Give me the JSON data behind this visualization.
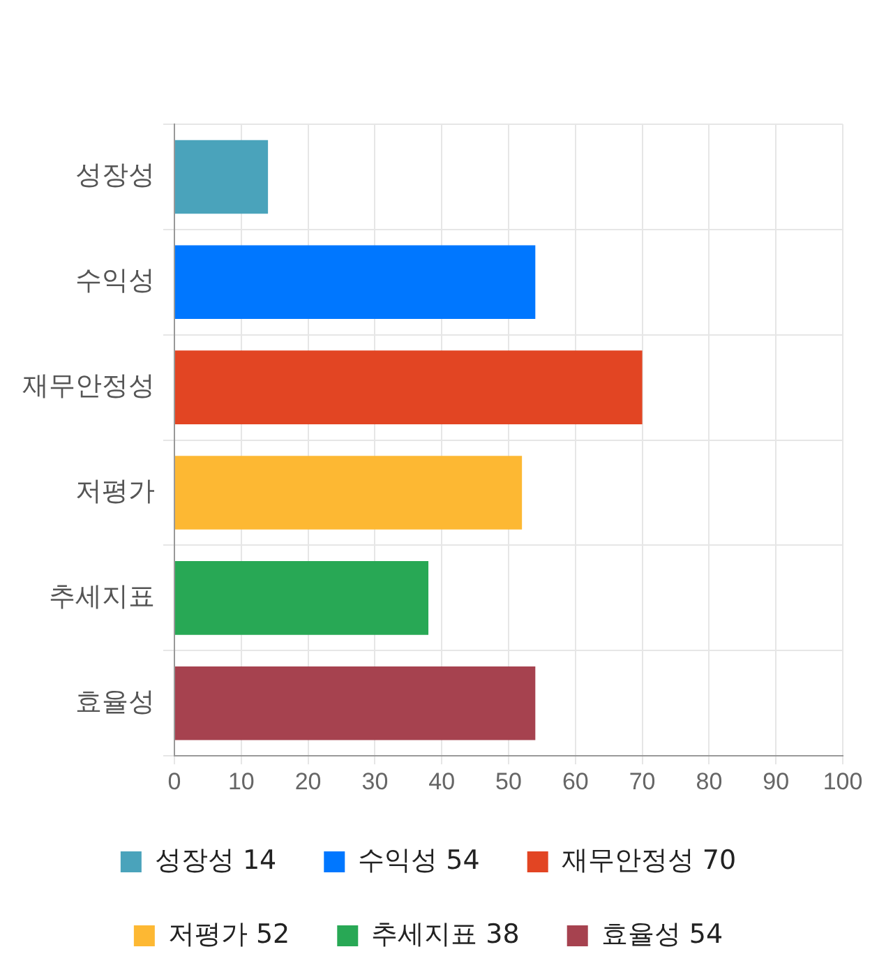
{
  "chart_data": {
    "type": "bar",
    "orientation": "horizontal",
    "stacked": true,
    "categories": [
      "성장성",
      "수익성",
      "재무안정성",
      "저평가",
      "추세지표",
      "효율성"
    ],
    "series": [
      {
        "name": "성장성 14",
        "color": "#4aa3bb",
        "values": [
          14,
          null,
          null,
          null,
          null,
          null
        ]
      },
      {
        "name": "수익성 54",
        "color": "#0077ff",
        "values": [
          null,
          54,
          null,
          null,
          null,
          null
        ]
      },
      {
        "name": "재무안정성 70",
        "color": "#e24523",
        "values": [
          null,
          null,
          70,
          null,
          null,
          null
        ]
      },
      {
        "name": "저평가 52",
        "color": "#fdb833",
        "values": [
          null,
          null,
          null,
          52,
          null,
          null
        ]
      },
      {
        "name": "추세지표 38",
        "color": "#28a855",
        "values": [
          null,
          null,
          null,
          null,
          38,
          null
        ]
      },
      {
        "name": "효율성 54",
        "color": "#a6424f",
        "values": [
          null,
          null,
          null,
          null,
          null,
          54
        ]
      }
    ],
    "xlim": [
      0,
      100
    ],
    "xticks": [
      0,
      10,
      20,
      30,
      40,
      50,
      60,
      70,
      80,
      90,
      100
    ],
    "grid": true,
    "legend": "bottom"
  }
}
